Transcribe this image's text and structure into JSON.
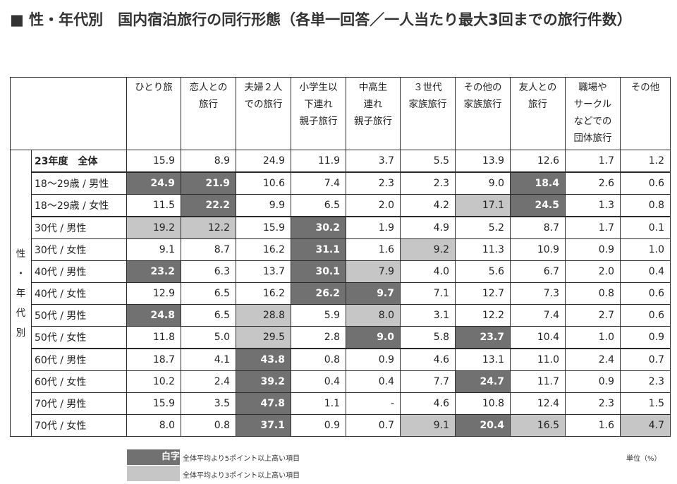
{
  "title": "■ 性・年代別　国内宿泊旅行の同行形態（各単一回答／一人当たり最大3回までの旅行件数）",
  "side_label": [
    "性",
    "・",
    "年",
    "代",
    "別"
  ],
  "columns": [
    {
      "lines": [
        "ひとり旅"
      ]
    },
    {
      "lines": [
        "恋人との",
        "旅行"
      ]
    },
    {
      "lines": [
        "夫婦２人",
        "での旅行"
      ]
    },
    {
      "lines": [
        "小学生以",
        "下連れ",
        "親子旅行"
      ]
    },
    {
      "lines": [
        "中高生",
        "連れ",
        "親子旅行"
      ]
    },
    {
      "lines": [
        "３世代",
        "家族旅行"
      ]
    },
    {
      "lines": [
        "その他の",
        "家族旅行"
      ]
    },
    {
      "lines": [
        "友人との",
        "旅行"
      ]
    },
    {
      "lines": [
        "職場や",
        "サークル",
        "などでの",
        "団体旅行"
      ]
    },
    {
      "lines": [
        "その他"
      ]
    }
  ],
  "total_row": {
    "label": "23年度　全体",
    "values": [
      "15.9",
      "8.9",
      "24.9",
      "11.9",
      "3.7",
      "5.5",
      "13.9",
      "12.6",
      "1.7",
      "1.2"
    ]
  },
  "rows": [
    {
      "label": "18～29歳 / 男性",
      "values": [
        "24.9",
        "21.9",
        "10.6",
        "7.4",
        "2.3",
        "2.3",
        "9.0",
        "18.4",
        "2.6",
        "0.6"
      ],
      "hl": [
        "d",
        "d",
        "",
        "",
        "",
        "",
        "",
        "d",
        "",
        ""
      ]
    },
    {
      "label": "18～29歳 / 女性",
      "values": [
        "11.5",
        "22.2",
        "9.9",
        "6.5",
        "2.0",
        "4.2",
        "17.1",
        "24.5",
        "1.3",
        "0.8"
      ],
      "hl": [
        "",
        "d",
        "",
        "",
        "",
        "",
        "l",
        "d",
        "",
        ""
      ]
    },
    {
      "label": "30代 / 男性",
      "values": [
        "19.2",
        "12.2",
        "15.9",
        "30.2",
        "1.9",
        "4.9",
        "5.2",
        "8.7",
        "1.7",
        "0.1"
      ],
      "hl": [
        "l",
        "l",
        "",
        "d",
        "",
        "",
        "",
        "",
        "",
        ""
      ]
    },
    {
      "label": "30代 / 女性",
      "values": [
        "9.1",
        "8.7",
        "16.2",
        "31.1",
        "1.6",
        "9.2",
        "11.3",
        "10.9",
        "0.9",
        "1.0"
      ],
      "hl": [
        "",
        "",
        "",
        "d",
        "",
        "l",
        "",
        "",
        "",
        ""
      ]
    },
    {
      "label": "40代 / 男性",
      "values": [
        "23.2",
        "6.3",
        "13.7",
        "30.1",
        "7.9",
        "4.0",
        "5.6",
        "6.7",
        "2.0",
        "0.4"
      ],
      "hl": [
        "d",
        "",
        "",
        "d",
        "l",
        "",
        "",
        "",
        "",
        ""
      ]
    },
    {
      "label": "40代 / 女性",
      "values": [
        "12.9",
        "6.5",
        "16.2",
        "26.2",
        "9.7",
        "7.1",
        "12.7",
        "7.3",
        "0.8",
        "0.6"
      ],
      "hl": [
        "",
        "",
        "",
        "d",
        "d",
        "",
        "",
        "",
        "",
        ""
      ]
    },
    {
      "label": "50代 / 男性",
      "values": [
        "24.8",
        "6.5",
        "28.8",
        "5.9",
        "8.0",
        "3.1",
        "12.2",
        "7.4",
        "2.7",
        "0.6"
      ],
      "hl": [
        "d",
        "",
        "l",
        "",
        "l",
        "",
        "",
        "",
        "",
        ""
      ]
    },
    {
      "label": "50代 / 女性",
      "values": [
        "11.8",
        "5.0",
        "29.5",
        "2.8",
        "9.0",
        "5.8",
        "23.7",
        "10.4",
        "1.0",
        "0.9"
      ],
      "hl": [
        "",
        "",
        "l",
        "",
        "d",
        "",
        "d",
        "",
        "",
        ""
      ]
    },
    {
      "label": "60代 / 男性",
      "values": [
        "18.7",
        "4.1",
        "43.8",
        "0.8",
        "0.9",
        "4.6",
        "13.1",
        "11.0",
        "2.4",
        "0.7"
      ],
      "hl": [
        "",
        "",
        "d",
        "",
        "",
        "",
        "",
        "",
        "",
        ""
      ]
    },
    {
      "label": "60代 / 女性",
      "values": [
        "10.2",
        "2.4",
        "39.2",
        "0.4",
        "0.4",
        "7.7",
        "24.7",
        "11.7",
        "0.9",
        "2.3"
      ],
      "hl": [
        "",
        "",
        "d",
        "",
        "",
        "",
        "d",
        "",
        "",
        ""
      ]
    },
    {
      "label": "70代 / 男性",
      "values": [
        "15.9",
        "3.5",
        "47.8",
        "1.1",
        "-",
        "4.6",
        "10.8",
        "12.4",
        "2.3",
        "1.5"
      ],
      "hl": [
        "",
        "",
        "d",
        "",
        "",
        "",
        "",
        "",
        "",
        ""
      ]
    },
    {
      "label": "70代 / 女性",
      "values": [
        "8.0",
        "0.8",
        "37.1",
        "0.9",
        "0.7",
        "9.1",
        "20.4",
        "16.5",
        "1.6",
        "4.7"
      ],
      "hl": [
        "",
        "",
        "d",
        "",
        "",
        "l",
        "d",
        "l",
        "",
        "l"
      ]
    }
  ],
  "legend": {
    "dark_swatch_text": "白字",
    "dark_text": "全体平均より5ポイント以上高い項目",
    "light_text": "全体平均より3ポイント以上高い項目",
    "unit": "単位（%）"
  },
  "colors": {
    "dark": "#717171",
    "light": "#c6c6c6"
  }
}
